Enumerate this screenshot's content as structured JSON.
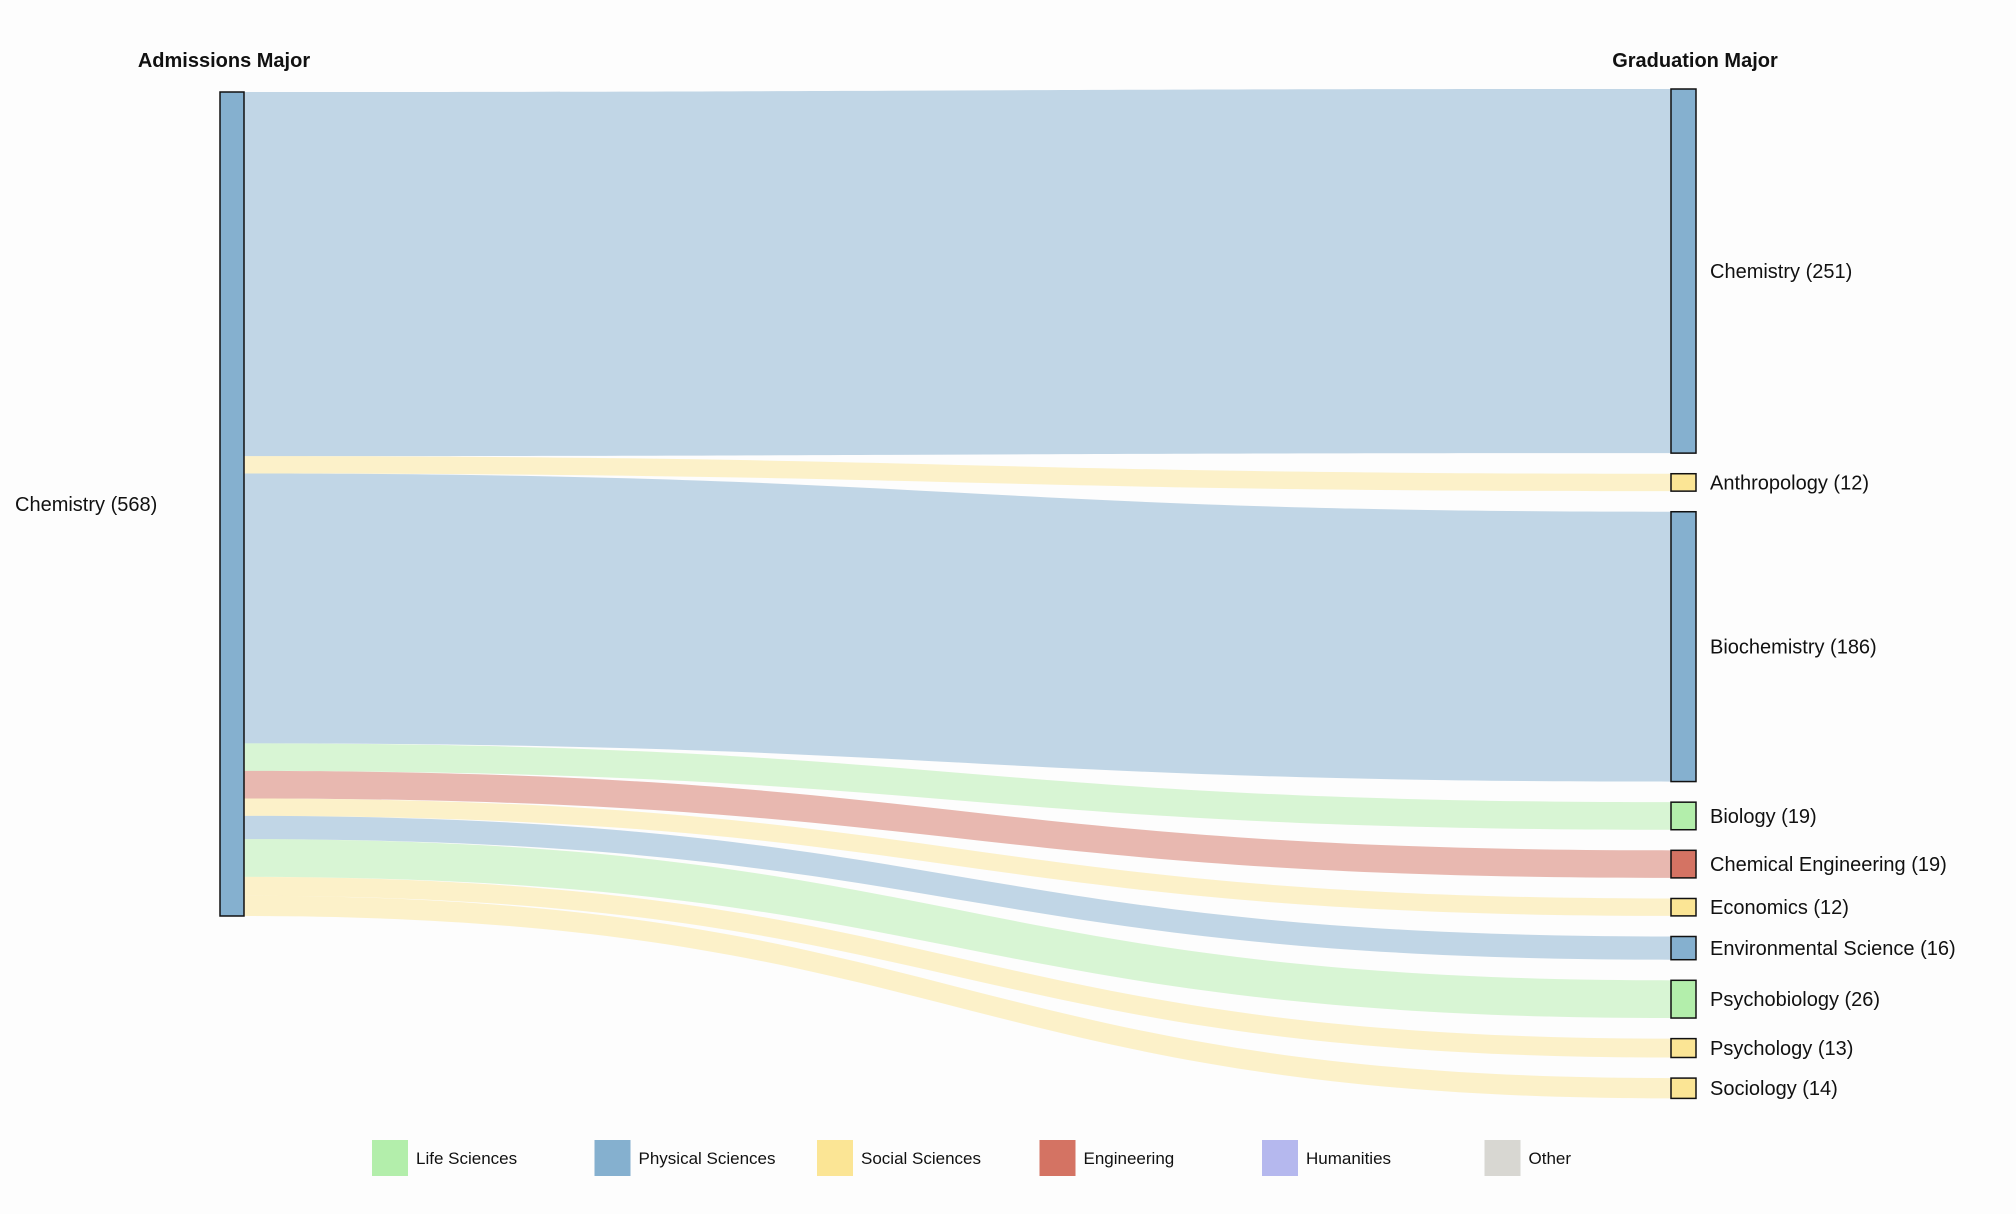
{
  "chart_data": {
    "type": "sankey",
    "left_header": "Admissions Major",
    "right_header": "Graduation Major",
    "source": {
      "name": "Chemistry",
      "value": 568,
      "label": "Chemistry (568)",
      "category": "Physical Sciences"
    },
    "targets": [
      {
        "name": "Chemistry",
        "value": 251,
        "label": "Chemistry (251)",
        "category": "Physical Sciences"
      },
      {
        "name": "Anthropology",
        "value": 12,
        "label": "Anthropology (12)",
        "category": "Social Sciences"
      },
      {
        "name": "Biochemistry",
        "value": 186,
        "label": "Biochemistry (186)",
        "category": "Physical Sciences"
      },
      {
        "name": "Biology",
        "value": 19,
        "label": "Biology (19)",
        "category": "Life Sciences"
      },
      {
        "name": "Chemical Engineering",
        "value": 19,
        "label": "Chemical Engineering (19)",
        "category": "Engineering"
      },
      {
        "name": "Economics",
        "value": 12,
        "label": "Economics (12)",
        "category": "Social Sciences"
      },
      {
        "name": "Environmental Science",
        "value": 16,
        "label": "Environmental Science (16)",
        "category": "Physical Sciences"
      },
      {
        "name": "Psychobiology",
        "value": 26,
        "label": "Psychobiology (26)",
        "category": "Life Sciences"
      },
      {
        "name": "Psychology",
        "value": 13,
        "label": "Psychology (13)",
        "category": "Social Sciences"
      },
      {
        "name": "Sociology",
        "value": 14,
        "label": "Sociology (14)",
        "category": "Social Sciences"
      }
    ],
    "legend": [
      {
        "name": "Life Sciences",
        "color": "#b3eeab"
      },
      {
        "name": "Physical Sciences",
        "color": "#85b0cf"
      },
      {
        "name": "Social Sciences",
        "color": "#fbe595"
      },
      {
        "name": "Engineering",
        "color": "#d47363"
      },
      {
        "name": "Humanities",
        "color": "#b5b8ee"
      },
      {
        "name": "Other",
        "color": "#d8d7d2"
      }
    ],
    "legend_position": "bottom"
  }
}
